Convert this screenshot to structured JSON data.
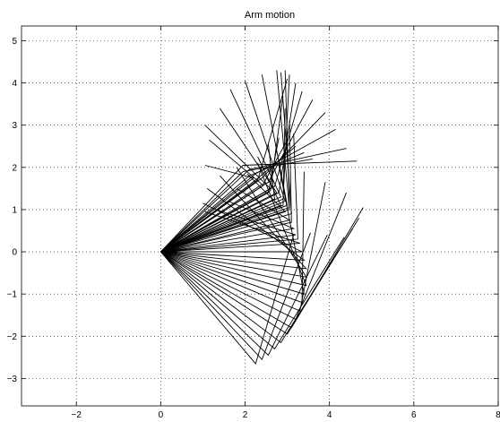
{
  "chart_data": {
    "type": "line",
    "title": "Arm motion",
    "xlabel": "",
    "ylabel": "",
    "xlim": [
      -3.3,
      8
    ],
    "ylim": [
      -3.65,
      5.35
    ],
    "x_ticks": [
      -2,
      0,
      2,
      4,
      6,
      8
    ],
    "y_ticks": [
      -3,
      -2,
      -1,
      0,
      1,
      2,
      3,
      4,
      5
    ],
    "grid": true,
    "base": [
      0,
      0
    ],
    "link_lengths": [
      3.5,
      3.2
    ],
    "description_of_series": "Each frame of the motion is drawn as a two-link arm polyline: base (0,0) -> elbow -> wrist.",
    "series": [
      {
        "elbow": [
          2.25,
          -2.65
        ],
        "wrist": [
          3.15,
          0.4
        ]
      },
      {
        "elbow": [
          2.4,
          -2.55
        ],
        "wrist": [
          3.55,
          0.45
        ]
      },
      {
        "elbow": [
          2.55,
          -2.45
        ],
        "wrist": [
          3.95,
          0.4
        ]
      },
      {
        "elbow": [
          2.7,
          -2.3
        ],
        "wrist": [
          4.35,
          0.35
        ]
      },
      {
        "elbow": [
          2.85,
          -2.15
        ],
        "wrist": [
          4.55,
          0.55
        ]
      },
      {
        "elbow": [
          3.0,
          -1.95
        ],
        "wrist": [
          4.7,
          0.8
        ]
      },
      {
        "elbow": [
          3.1,
          -1.8
        ],
        "wrist": [
          4.8,
          1.05
        ]
      },
      {
        "elbow": [
          3.2,
          -1.6
        ],
        "wrist": [
          4.4,
          1.4
        ]
      },
      {
        "elbow": [
          3.3,
          -1.4
        ],
        "wrist": [
          3.9,
          1.65
        ]
      },
      {
        "elbow": [
          3.35,
          -1.2
        ],
        "wrist": [
          3.4,
          1.9
        ]
      },
      {
        "elbow": [
          3.4,
          -1.0
        ],
        "wrist": [
          2.8,
          2.05
        ]
      },
      {
        "elbow": [
          3.45,
          -0.8
        ],
        "wrist": [
          2.3,
          2.1
        ]
      },
      {
        "elbow": [
          3.45,
          -0.6
        ],
        "wrist": [
          1.8,
          2.0
        ]
      },
      {
        "elbow": [
          3.45,
          -0.4
        ],
        "wrist": [
          1.4,
          1.8
        ]
      },
      {
        "elbow": [
          3.4,
          -0.2
        ],
        "wrist": [
          1.1,
          1.5
        ]
      },
      {
        "elbow": [
          3.35,
          0.0
        ],
        "wrist": [
          1.0,
          1.15
        ]
      },
      {
        "elbow": [
          3.3,
          0.2
        ],
        "wrist": [
          1.05,
          0.95
        ]
      },
      {
        "elbow": [
          3.2,
          0.4
        ],
        "wrist": [
          1.3,
          1.0
        ]
      },
      {
        "elbow": [
          3.15,
          0.55
        ],
        "wrist": [
          1.6,
          1.2
        ]
      },
      {
        "elbow": [
          3.05,
          0.75
        ],
        "wrist": [
          1.8,
          1.5
        ]
      },
      {
        "elbow": [
          2.95,
          0.95
        ],
        "wrist": [
          2.05,
          1.85
        ]
      },
      {
        "elbow": [
          2.85,
          1.1
        ],
        "wrist": [
          2.3,
          2.25
        ]
      },
      {
        "elbow": [
          2.7,
          1.25
        ],
        "wrist": [
          2.55,
          2.55
        ]
      },
      {
        "elbow": [
          2.55,
          1.4
        ],
        "wrist": [
          2.8,
          2.7
        ]
      },
      {
        "elbow": [
          2.4,
          1.55
        ],
        "wrist": [
          3.0,
          2.65
        ]
      },
      {
        "elbow": [
          2.25,
          1.7
        ],
        "wrist": [
          3.2,
          2.5
        ]
      },
      {
        "elbow": [
          2.1,
          1.8
        ],
        "wrist": [
          3.4,
          2.35
        ]
      },
      {
        "elbow": [
          1.95,
          1.9
        ],
        "wrist": [
          3.6,
          2.2
        ]
      },
      {
        "elbow": [
          2.2,
          1.75
        ],
        "wrist": [
          1.05,
          2.05
        ]
      },
      {
        "elbow": [
          2.4,
          1.6
        ],
        "wrist": [
          1.15,
          2.65
        ]
      },
      {
        "elbow": [
          2.6,
          1.5
        ],
        "wrist": [
          1.05,
          3.0
        ]
      },
      {
        "elbow": [
          2.75,
          1.4
        ],
        "wrist": [
          1.4,
          3.4
        ]
      },
      {
        "elbow": [
          2.85,
          1.3
        ],
        "wrist": [
          1.65,
          3.85
        ]
      },
      {
        "elbow": [
          2.95,
          1.2
        ],
        "wrist": [
          2.0,
          4.05
        ]
      },
      {
        "elbow": [
          3.0,
          1.1
        ],
        "wrist": [
          2.4,
          4.2
        ]
      },
      {
        "elbow": [
          3.05,
          1.0
        ],
        "wrist": [
          2.75,
          4.3
        ]
      },
      {
        "elbow": [
          3.1,
          0.9
        ],
        "wrist": [
          2.85,
          4.25
        ]
      },
      {
        "elbow": [
          3.05,
          1.05
        ],
        "wrist": [
          2.95,
          4.3
        ]
      },
      {
        "elbow": [
          2.9,
          1.25
        ],
        "wrist": [
          3.05,
          4.2
        ]
      },
      {
        "elbow": [
          2.8,
          1.4
        ],
        "wrist": [
          3.2,
          4.0
        ]
      },
      {
        "elbow": [
          2.7,
          1.55
        ],
        "wrist": [
          3.35,
          3.8
        ]
      },
      {
        "elbow": [
          2.55,
          1.65
        ],
        "wrist": [
          3.6,
          3.6
        ]
      },
      {
        "elbow": [
          2.4,
          1.75
        ],
        "wrist": [
          3.9,
          3.3
        ]
      },
      {
        "elbow": [
          2.25,
          1.85
        ],
        "wrist": [
          4.15,
          2.9
        ]
      },
      {
        "elbow": [
          2.1,
          1.95
        ],
        "wrist": [
          4.4,
          2.45
        ]
      },
      {
        "elbow": [
          1.95,
          2.05
        ],
        "wrist": [
          4.65,
          2.15
        ]
      },
      {
        "elbow": [
          2.3,
          1.7
        ],
        "wrist": [
          3.0,
          4.1
        ]
      },
      {
        "elbow": [
          2.6,
          1.45
        ],
        "wrist": [
          2.9,
          3.7
        ]
      },
      {
        "elbow": [
          2.9,
          1.1
        ],
        "wrist": [
          2.95,
          3.4
        ]
      },
      {
        "elbow": [
          3.1,
          0.7
        ],
        "wrist": [
          3.05,
          3.1
        ]
      },
      {
        "elbow": [
          3.25,
          0.3
        ],
        "wrist": [
          3.15,
          2.8
        ]
      }
    ]
  }
}
